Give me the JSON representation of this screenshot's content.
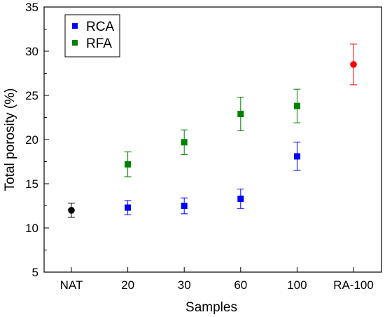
{
  "chart_data": {
    "type": "scatter",
    "xlabel": "Samples",
    "ylabel": "Total porosity (%)",
    "categories": [
      "NAT",
      "20",
      "30",
      "60",
      "100",
      "RA-100"
    ],
    "ylim": [
      5,
      35
    ],
    "yticks": [
      5,
      10,
      15,
      20,
      25,
      30,
      35
    ],
    "grid": false,
    "legend_position": "top-left",
    "series": [
      {
        "name": "",
        "color": "#000000",
        "marker": "circle",
        "points": [
          {
            "x": "NAT",
            "y": 12.0,
            "err": 0.8
          }
        ]
      },
      {
        "name": "RCA",
        "color": "#0000FF",
        "marker": "square",
        "points": [
          {
            "x": "20",
            "y": 12.3,
            "err": 0.8
          },
          {
            "x": "30",
            "y": 12.5,
            "err": 0.9
          },
          {
            "x": "60",
            "y": 13.3,
            "err": 1.1
          },
          {
            "x": "100",
            "y": 18.1,
            "err": 1.6
          }
        ]
      },
      {
        "name": "RFA",
        "color": "#008000",
        "marker": "square",
        "points": [
          {
            "x": "20",
            "y": 17.2,
            "err": 1.4
          },
          {
            "x": "30",
            "y": 19.7,
            "err": 1.4
          },
          {
            "x": "60",
            "y": 22.9,
            "err": 1.9
          },
          {
            "x": "100",
            "y": 23.8,
            "err": 1.9
          }
        ]
      },
      {
        "name": "",
        "color": "#FF0000",
        "marker": "circle",
        "points": [
          {
            "x": "RA-100",
            "y": 28.5,
            "err": 2.3
          }
        ]
      }
    ]
  }
}
